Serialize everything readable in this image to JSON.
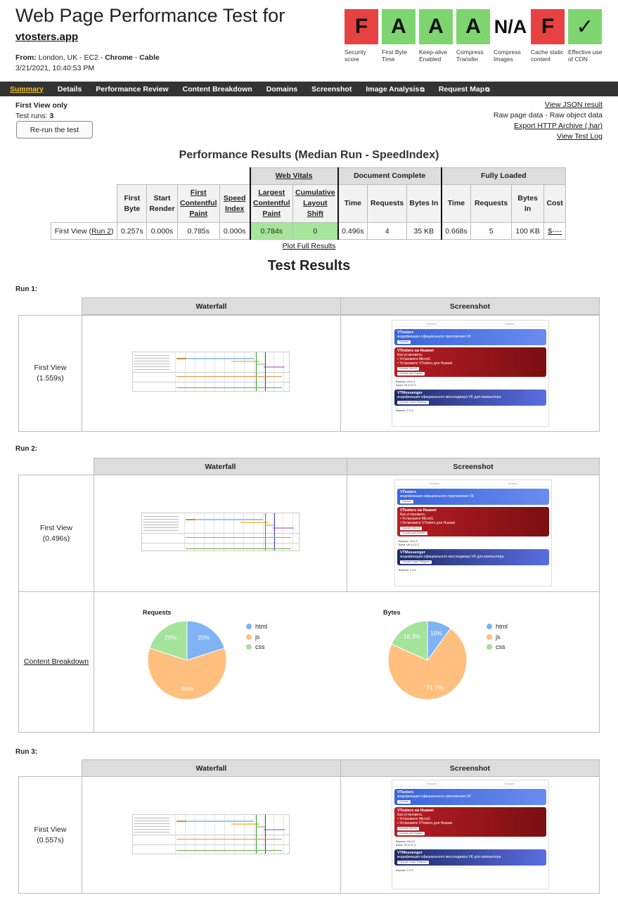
{
  "header": {
    "title": "Web Page Performance Test for",
    "site": "vtosters.app",
    "from_label": "From:",
    "from_location": " London, UK - EC2 - ",
    "browser": "Chrome",
    "sep": " - ",
    "connection": "Cable",
    "datetime": "3/21/2021, 10:40:53 PM"
  },
  "grades": [
    {
      "grade": "F",
      "label": "Security score",
      "color": "#e84141"
    },
    {
      "grade": "A",
      "label": "First Byte Time",
      "color": "#7ed56f"
    },
    {
      "grade": "A",
      "label": "Keep-alive Enabled",
      "color": "#7ed56f"
    },
    {
      "grade": "A",
      "label": "Compress Transfer",
      "color": "#7ed56f"
    },
    {
      "grade": "N/A",
      "label": "Compress Images",
      "color": "#ffffff"
    },
    {
      "grade": "F",
      "label": "Cache static content",
      "color": "#e84141"
    },
    {
      "grade": "✓",
      "label": "Effective use of CDN",
      "color": "#7ed56f"
    }
  ],
  "nav": {
    "summary": "Summary",
    "details": "Details",
    "performance_review": "Performance Review",
    "content_breakdown": "Content Breakdown",
    "domains": "Domains",
    "screenshot": "Screenshot",
    "image_analysis": "Image Analysis",
    "request_map": "Request Map",
    "external_icon": "⧉"
  },
  "info": {
    "first_view_only": "First View only",
    "test_runs_label": "Test runs: ",
    "test_runs": "3",
    "rerun": "Re-run the test",
    "view_json": "View JSON result",
    "raw_page_data": "Raw page data",
    "raw_sep": " - ",
    "raw_object_data": "Raw object data",
    "export_har": "Export HTTP Archive (.har)",
    "view_log": "View Test Log"
  },
  "perf": {
    "title": "Performance Results (Median Run - SpeedIndex)",
    "group_web_vitals": "Web Vitals",
    "group_document_complete": "Document Complete",
    "group_fully_loaded": "Fully Loaded",
    "headers": {
      "first_byte": "First Byte",
      "start_render": "Start Render",
      "fcp": "First Contentful Paint",
      "speed_index": "Speed Index",
      "lcp": "Largest Contentful Paint",
      "cls": "Cumulative Layout Shift",
      "time": "Time",
      "requests": "Requests",
      "bytes_in": "Bytes In",
      "cost": "Cost"
    },
    "row": {
      "label": "First View (",
      "run_link": "Run 2",
      "label_end": ")",
      "first_byte": "0.257s",
      "start_render": "0.000s",
      "fcp": "0.785s",
      "speed_index": "0.000s",
      "lcp": "0.784s",
      "cls": "0",
      "dc_time": "0.496s",
      "dc_requests": "4",
      "dc_bytes": "35 KB",
      "fl_time": "0.668s",
      "fl_requests": "5",
      "fl_bytes": "100 KB",
      "cost": "$----"
    },
    "plot_full": "Plot Full Results"
  },
  "test_results": {
    "title": "Test Results",
    "waterfall": "Waterfall",
    "screenshot": "Screenshot",
    "runs": [
      {
        "label": "Run 1:",
        "first_view": "First View",
        "time": "(1.559s)"
      },
      {
        "label": "Run 2:",
        "first_view": "First View",
        "time": "(0.496s)"
      },
      {
        "label": "Run 3:",
        "first_view": "First View",
        "time": "(0.557s)"
      }
    ],
    "content_breakdown": "Content Breakdown"
  },
  "screenshot_mock": {
    "tab1": "Vtosters",
    "tab2": "Huawei",
    "card1_title": "VTosters",
    "card1_sub": "модификация официального приложения VK",
    "card1_btn": "Скачать",
    "card2_title": "VTosters на Huawei",
    "card2_sub1": "Как установить:",
    "card2_sub2": "• Установите MicroG",
    "card2_sub3": "• Установите VTosters для Huawei",
    "card2_btn1": "Скачать MicroG",
    "card2_btn2": "Скачать для Huawei",
    "ver1": "Версия: 19.6.3",
    "ver2": "База: VK 6.21.2",
    "card3_title": "VTMessenger",
    "card3_sub": "модификация официального мессенджера VK для компьютера",
    "card3_btn": "Скачать через Telegram",
    "ver3": "Версия: 1.0.3"
  },
  "chart_data": [
    {
      "type": "pie",
      "title": "Requests",
      "categories": [
        "html",
        "js",
        "css"
      ],
      "values": [
        20,
        60,
        20
      ],
      "labels": [
        "20%",
        "60%",
        "20%"
      ],
      "colors": [
        "#7fb3f5",
        "#ffbf7f",
        "#a3e39a"
      ],
      "legend": "right"
    },
    {
      "type": "pie",
      "title": "Bytes",
      "categories": [
        "html",
        "js",
        "css"
      ],
      "values": [
        10,
        71.7,
        18.3
      ],
      "labels": [
        "10%",
        "71.7%",
        "18.3%"
      ],
      "colors": [
        "#7fb3f5",
        "#ffbf7f",
        "#a3e39a"
      ],
      "legend": "right"
    }
  ]
}
